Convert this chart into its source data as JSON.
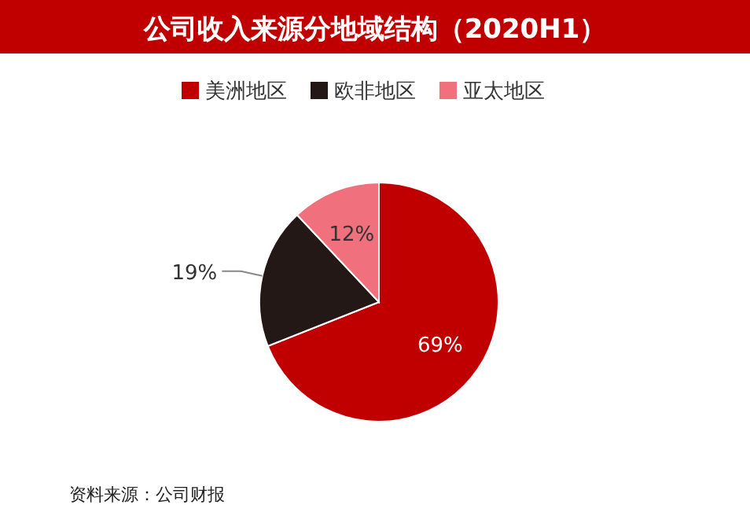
{
  "chart_data": {
    "type": "pie",
    "title": "公司收入来源分地域结构（2020H1）",
    "categories": [
      "美洲地区",
      "欧非地区",
      "亚太地区"
    ],
    "values": [
      69,
      19,
      12
    ],
    "colors": [
      "#c00000",
      "#231815",
      "#f0707d"
    ],
    "value_labels": [
      "69%",
      "19%",
      "12%"
    ],
    "legend": "top",
    "annotations": [
      "资料来源：公司财报"
    ]
  }
}
